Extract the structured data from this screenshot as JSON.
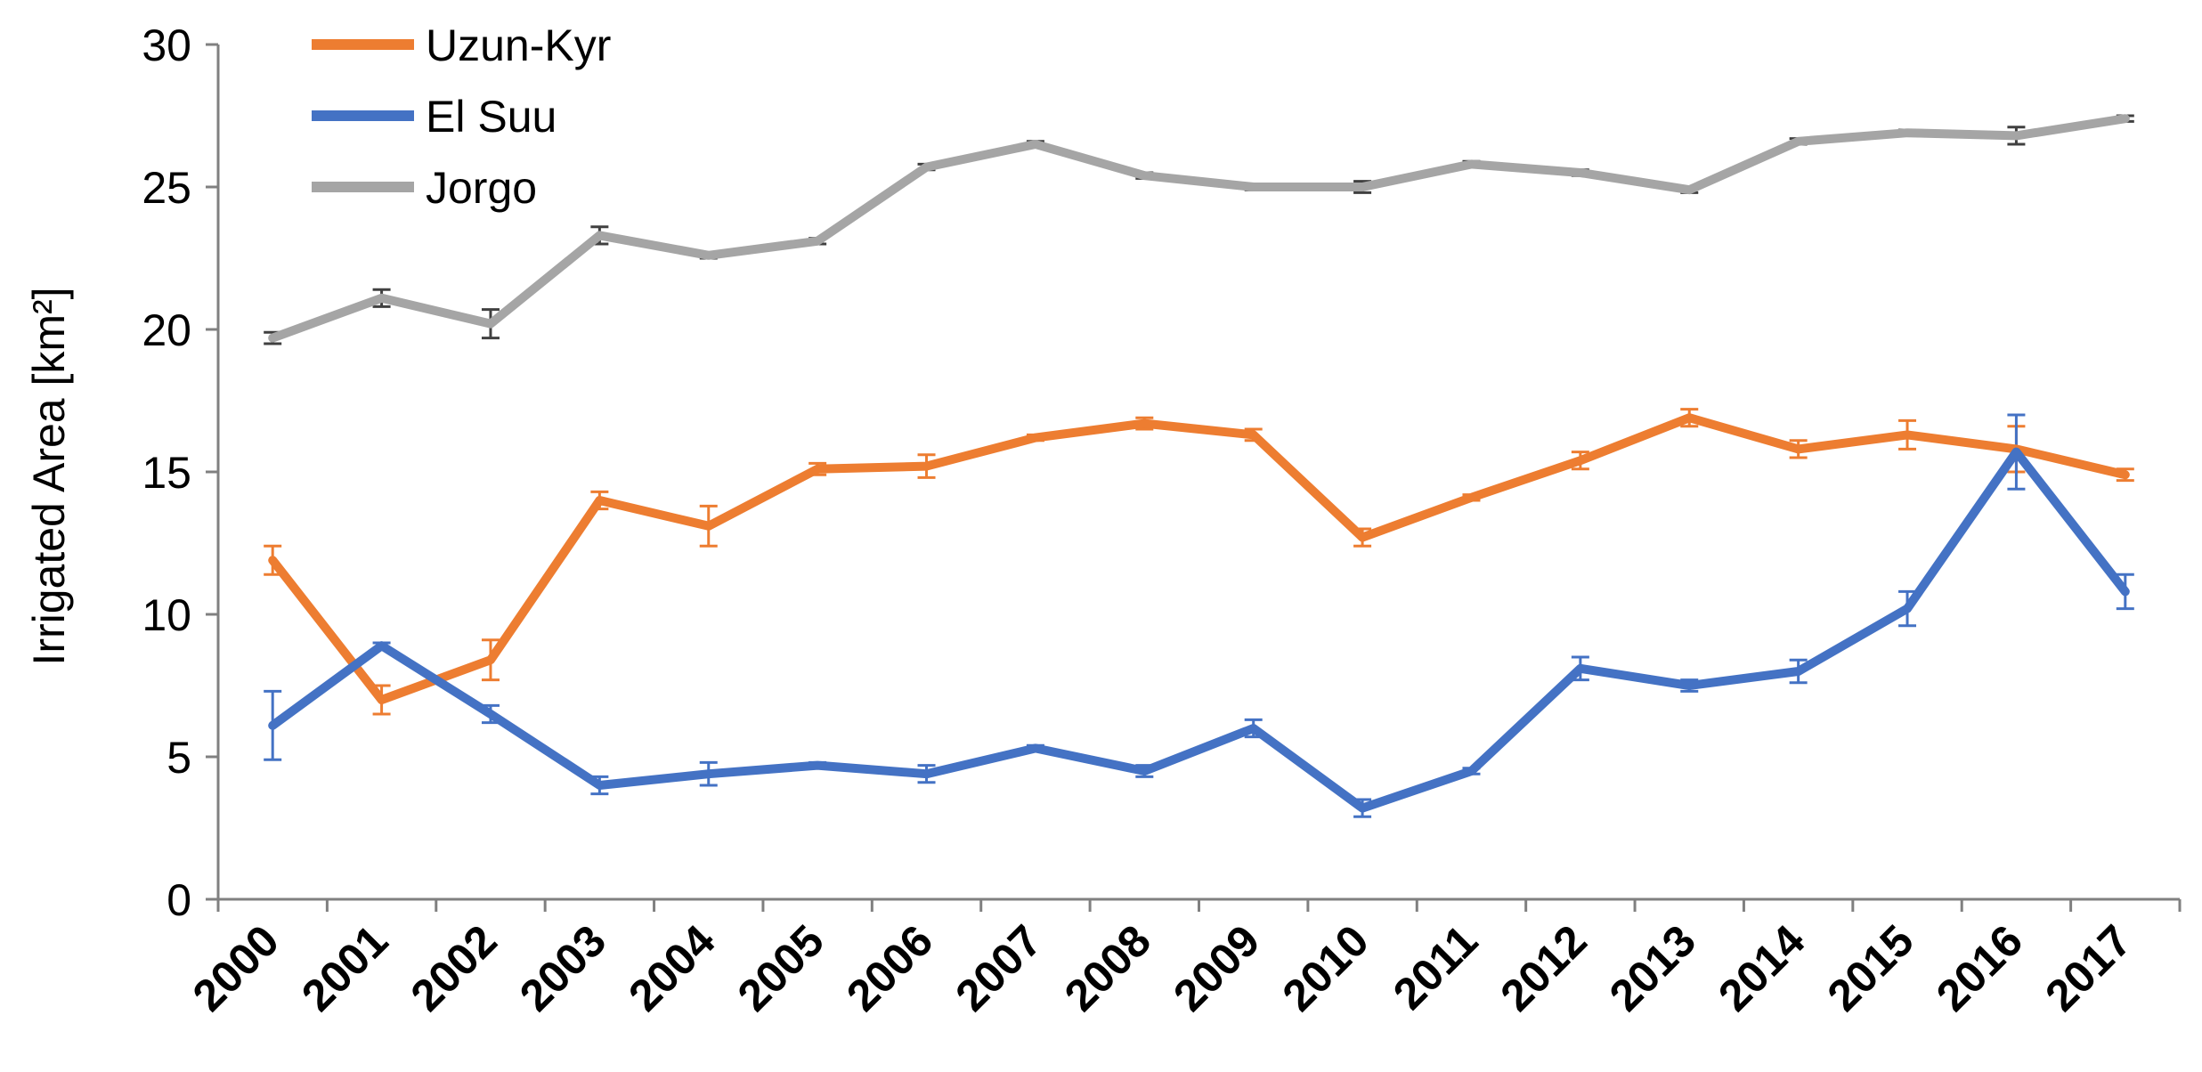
{
  "chart_data": {
    "type": "line",
    "title": "",
    "xlabel": "",
    "ylabel": "Irrigated Area [km²]",
    "ylim": [
      0,
      30
    ],
    "yticks": [
      0,
      5,
      10,
      15,
      20,
      25,
      30
    ],
    "grid": false,
    "legend_position": "top-left",
    "categories": [
      "2000",
      "2001",
      "2002",
      "2003",
      "2004",
      "2005",
      "2006",
      "2007",
      "2008",
      "2009",
      "2010",
      "2011",
      "2012",
      "2013",
      "2014",
      "2015",
      "2016",
      "2017"
    ],
    "series": [
      {
        "name": "Uzun-Kyr",
        "color": "#ed7d31",
        "values": [
          11.9,
          7.0,
          8.4,
          14.0,
          13.1,
          15.1,
          15.2,
          16.2,
          16.7,
          16.3,
          12.7,
          14.1,
          15.4,
          16.9,
          15.8,
          16.3,
          15.8,
          14.9
        ],
        "errors": [
          0.5,
          0.5,
          0.7,
          0.3,
          0.7,
          0.2,
          0.4,
          0.1,
          0.2,
          0.2,
          0.3,
          0.1,
          0.3,
          0.3,
          0.3,
          0.5,
          0.8,
          0.2
        ]
      },
      {
        "name": "El Suu",
        "color": "#4472c4",
        "values": [
          6.1,
          8.9,
          6.5,
          4.0,
          4.4,
          4.7,
          4.4,
          5.3,
          4.5,
          6.0,
          3.2,
          4.5,
          8.1,
          7.5,
          8.0,
          10.2,
          15.7,
          10.8
        ],
        "errors": [
          1.2,
          0.1,
          0.3,
          0.3,
          0.4,
          0.1,
          0.3,
          0.1,
          0.2,
          0.3,
          0.3,
          0.1,
          0.4,
          0.2,
          0.4,
          0.6,
          1.3,
          0.6
        ]
      },
      {
        "name": "Jorgo",
        "color": "#a5a5a5",
        "values": [
          19.7,
          21.1,
          20.2,
          23.3,
          22.6,
          23.1,
          25.7,
          26.5,
          25.4,
          25.0,
          25.0,
          25.8,
          25.5,
          24.9,
          26.6,
          26.9,
          26.8,
          27.4
        ],
        "errors": [
          0.2,
          0.3,
          0.5,
          0.3,
          0.1,
          0.1,
          0.1,
          0.1,
          0.1,
          0.1,
          0.2,
          0.1,
          0.1,
          0.1,
          0.1,
          0.1,
          0.3,
          0.1
        ]
      }
    ]
  }
}
